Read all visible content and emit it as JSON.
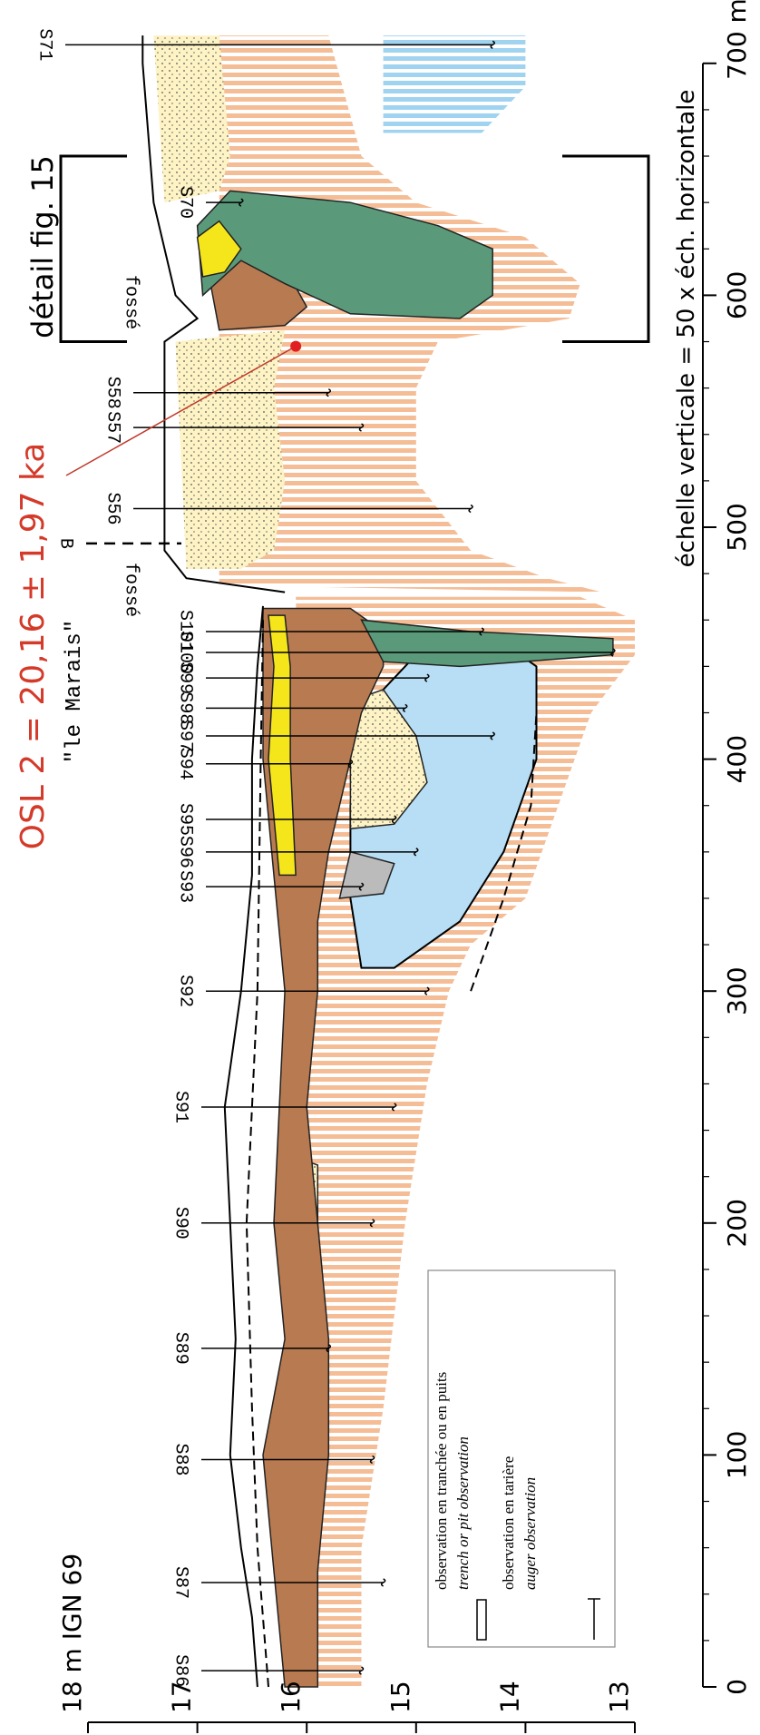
{
  "title": "OSL 2 = 20,16 ± 1,97 ka",
  "place": "\"le Marais\"",
  "detail": "détail fig. 15",
  "scale_note": "échelle verticale = 50 x éch. horizontale",
  "elevation_axis": [
    "18 m IGN 69",
    "17",
    "16",
    "15",
    "14",
    "13"
  ],
  "distance_axis": [
    "0",
    "100",
    "200",
    "300",
    "400",
    "500",
    "600",
    "700 m"
  ],
  "boreholes": [
    "S86",
    "S87",
    "S88",
    "S89",
    "S90",
    "S91",
    "S92",
    "S93",
    "S96",
    "S95",
    "S94",
    "S97",
    "S98",
    "S99",
    "S100",
    "S101",
    "S56",
    "S57",
    "S58",
    "S70",
    "S71"
  ],
  "markers": [
    "fossé",
    "B",
    "fossé"
  ],
  "legend": [
    {
      "fr": "observation en tranchée ou en puits",
      "en": "trench or pit observation"
    },
    {
      "fr": "observation en tarière",
      "en": "auger observation"
    }
  ]
}
